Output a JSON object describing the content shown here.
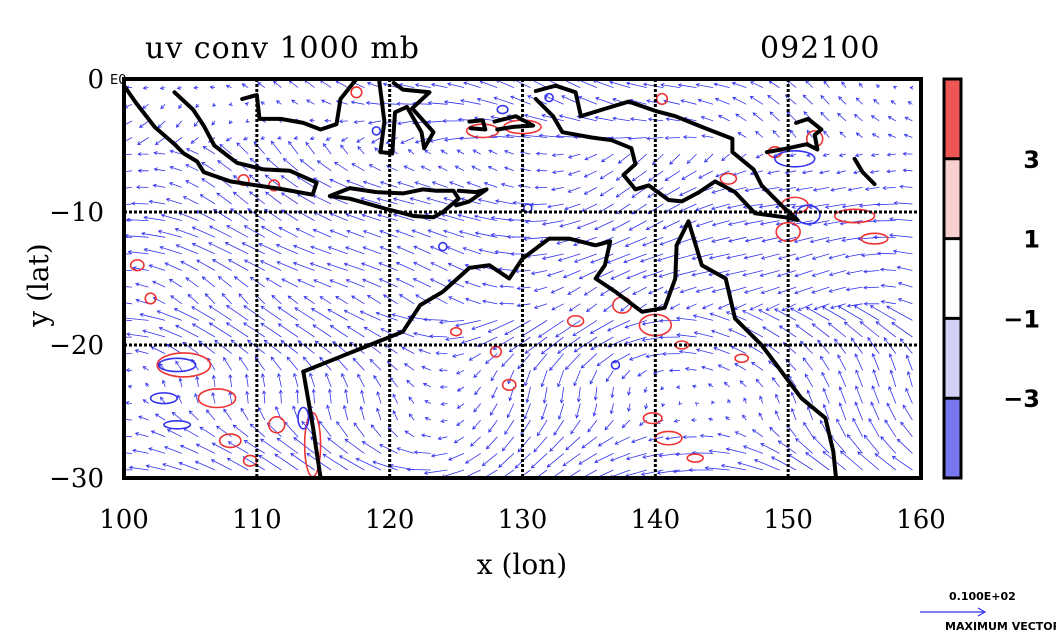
{
  "chart_data": {
    "type": "vector-field-contour",
    "title": "uv conv 1000 mb",
    "timestamp": "092100",
    "xlabel": "x (lon)",
    "ylabel": "y (lat)",
    "x_ticks": [
      "100",
      "110",
      "120",
      "130",
      "140",
      "150",
      "160"
    ],
    "x_tick_values": [
      100,
      110,
      120,
      130,
      140,
      150,
      160
    ],
    "y_ticks": [
      "0",
      "−10",
      "−20",
      "−30"
    ],
    "y_tick_values": [
      0,
      -10,
      -20,
      -30
    ],
    "corner_label": "E0",
    "xlim": [
      100,
      160
    ],
    "ylim": [
      -30,
      0
    ],
    "grid": true,
    "vector_color": "#3333ee",
    "coast_color": "#000000",
    "positive_contour_color": "#ee3333",
    "negative_contour_color": "#3333ee",
    "colorbar": {
      "labels": [
        "3",
        "1",
        "−1",
        "−3"
      ],
      "label_values": [
        3,
        1,
        -1,
        -3
      ],
      "bands": [
        {
          "range": ">3",
          "color": "#ee5555"
        },
        {
          "range": "1 to 3",
          "color": "#f8d0d0"
        },
        {
          "range": "-1 to 1",
          "color": "#ffffff"
        },
        {
          "range": "-3 to -1",
          "color": "#d2d2f8"
        },
        {
          "range": "<-3",
          "color": "#7777ee"
        }
      ]
    },
    "legend_vector": {
      "magnitude_label": "0.100E+02",
      "caption": "MAXIMUM VECTOR"
    }
  }
}
